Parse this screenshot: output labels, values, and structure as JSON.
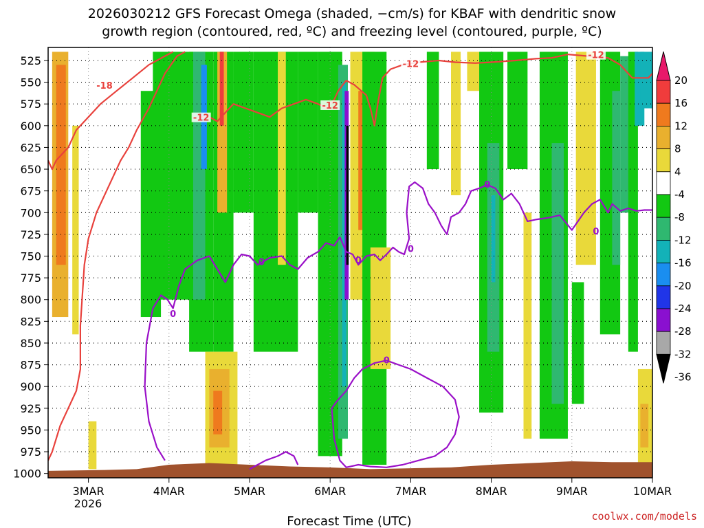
{
  "chart_data": {
    "type": "heatmap",
    "title_line1": "2026030212 GFS Forecast Omega (shaded, −cm/s) for KBAF with dendritic snow",
    "title_line2": "growth region (contoured, red, ºC) and freezing level (contoured, purple, ºC)",
    "xlabel": "Forecast Time (UTC)",
    "credit": "coolwx.com/models",
    "x_ticks": [
      "3MAR",
      "4MAR",
      "5MAR",
      "6MAR",
      "7MAR",
      "8MAR",
      "9MAR",
      "10MAR"
    ],
    "x_year_label": "2026",
    "x_range_days": [
      2.5,
      10.0
    ],
    "y_ticks": [
      525,
      550,
      575,
      600,
      625,
      650,
      675,
      700,
      725,
      750,
      775,
      800,
      825,
      850,
      875,
      900,
      925,
      950,
      975,
      1000
    ],
    "y_range_hpa": [
      510,
      1005
    ],
    "colorbar": {
      "levels": [
        20,
        16,
        12,
        8,
        4,
        -4,
        -8,
        -12,
        -16,
        -20,
        -24,
        -28,
        -32,
        -36
      ],
      "colors": [
        "#e8186a",
        "#f03c3c",
        "#ef7a1e",
        "#e9b02e",
        "#e9d93a",
        "#ffffff",
        "#12c812",
        "#2fb870",
        "#13b2b8",
        "#1a8ef0",
        "#2035e8",
        "#8a10d0",
        "#a8a8a8",
        "#000000"
      ]
    },
    "colors": {
      "snow_growth_contour": "#e8413c",
      "freezing_level_contour": "#9a10c8",
      "terrain": "#a0522d"
    },
    "contour_labels": {
      "red": [
        "-18",
        "-12",
        "-12",
        "-12",
        "-12"
      ],
      "purple": [
        "0",
        "0",
        "0",
        "0",
        "0",
        "0",
        "0"
      ]
    },
    "omega_bands": [
      {
        "x0": 2.55,
        "x1": 2.75,
        "p0": 515,
        "p1": 820,
        "v": 10
      },
      {
        "x0": 2.6,
        "x1": 2.72,
        "p0": 530,
        "p1": 760,
        "v": 14
      },
      {
        "x0": 2.8,
        "x1": 2.88,
        "p0": 600,
        "p1": 840,
        "v": 5
      },
      {
        "x0": 3.0,
        "x1": 3.1,
        "p0": 940,
        "p1": 995,
        "v": 5
      },
      {
        "x0": 3.65,
        "x1": 3.9,
        "p0": 560,
        "p1": 820,
        "v": -6
      },
      {
        "x0": 3.8,
        "x1": 4.3,
        "p0": 515,
        "p1": 800,
        "v": -6
      },
      {
        "x0": 4.15,
        "x1": 4.3,
        "p0": 520,
        "p1": 780,
        "v": -10
      },
      {
        "x0": 4.25,
        "x1": 4.55,
        "p0": 515,
        "p1": 860,
        "v": -6
      },
      {
        "x0": 4.3,
        "x1": 4.45,
        "p0": 515,
        "p1": 800,
        "v": -12
      },
      {
        "x0": 4.4,
        "x1": 4.47,
        "p0": 530,
        "p1": 650,
        "v": -22
      },
      {
        "x0": 4.55,
        "x1": 4.8,
        "p0": 515,
        "p1": 860,
        "v": -6
      },
      {
        "x0": 4.6,
        "x1": 4.72,
        "p0": 515,
        "p1": 700,
        "v": 10
      },
      {
        "x0": 4.63,
        "x1": 4.68,
        "p0": 515,
        "p1": 600,
        "v": 18
      },
      {
        "x0": 4.45,
        "x1": 4.85,
        "p0": 860,
        "p1": 990,
        "v": 5
      },
      {
        "x0": 4.5,
        "x1": 4.75,
        "p0": 880,
        "p1": 970,
        "v": 10
      },
      {
        "x0": 4.55,
        "x1": 4.66,
        "p0": 905,
        "p1": 955,
        "v": 14
      },
      {
        "x0": 4.8,
        "x1": 5.05,
        "p0": 515,
        "p1": 700,
        "v": -6
      },
      {
        "x0": 5.05,
        "x1": 5.6,
        "p0": 515,
        "p1": 860,
        "v": -6
      },
      {
        "x0": 5.35,
        "x1": 5.45,
        "p0": 515,
        "p1": 760,
        "v": 6
      },
      {
        "x0": 5.6,
        "x1": 5.85,
        "p0": 515,
        "p1": 700,
        "v": -6
      },
      {
        "x0": 5.85,
        "x1": 6.15,
        "p0": 515,
        "p1": 980,
        "v": -6
      },
      {
        "x0": 6.1,
        "x1": 6.22,
        "p0": 530,
        "p1": 960,
        "v": -12
      },
      {
        "x0": 6.15,
        "x1": 6.2,
        "p0": 550,
        "p1": 900,
        "v": -18
      },
      {
        "x0": 6.18,
        "x1": 6.23,
        "p0": 560,
        "p1": 800,
        "v": -30
      },
      {
        "x0": 6.2,
        "x1": 6.23,
        "p0": 600,
        "p1": 760,
        "v": -40
      },
      {
        "x0": 6.25,
        "x1": 6.55,
        "p0": 515,
        "p1": 800,
        "v": 6
      },
      {
        "x0": 6.35,
        "x1": 6.5,
        "p0": 560,
        "p1": 720,
        "v": 12
      },
      {
        "x0": 6.4,
        "x1": 6.7,
        "p0": 515,
        "p1": 990,
        "v": -6
      },
      {
        "x0": 6.5,
        "x1": 6.75,
        "p0": 740,
        "p1": 880,
        "v": 6
      },
      {
        "x0": 7.2,
        "x1": 7.35,
        "p0": 515,
        "p1": 650,
        "v": -6
      },
      {
        "x0": 7.5,
        "x1": 7.62,
        "p0": 515,
        "p1": 680,
        "v": 5
      },
      {
        "x0": 7.7,
        "x1": 7.85,
        "p0": 515,
        "p1": 560,
        "v": 5
      },
      {
        "x0": 7.85,
        "x1": 8.15,
        "p0": 515,
        "p1": 930,
        "v": -6
      },
      {
        "x0": 7.95,
        "x1": 8.1,
        "p0": 620,
        "p1": 860,
        "v": -12
      },
      {
        "x0": 8.0,
        "x1": 8.05,
        "p0": 680,
        "p1": 780,
        "v": -16
      },
      {
        "x0": 8.2,
        "x1": 8.45,
        "p0": 515,
        "p1": 650,
        "v": -6
      },
      {
        "x0": 8.4,
        "x1": 8.5,
        "p0": 700,
        "p1": 960,
        "v": 5
      },
      {
        "x0": 8.6,
        "x1": 8.95,
        "p0": 515,
        "p1": 960,
        "v": -6
      },
      {
        "x0": 8.75,
        "x1": 8.9,
        "p0": 620,
        "p1": 920,
        "v": -12
      },
      {
        "x0": 9.05,
        "x1": 9.3,
        "p0": 515,
        "p1": 760,
        "v": 5
      },
      {
        "x0": 9.0,
        "x1": 9.15,
        "p0": 780,
        "p1": 920,
        "v": -6
      },
      {
        "x0": 9.35,
        "x1": 9.6,
        "p0": 515,
        "p1": 840,
        "v": -6
      },
      {
        "x0": 9.5,
        "x1": 9.6,
        "p0": 560,
        "p1": 760,
        "v": -12
      },
      {
        "x0": 9.6,
        "x1": 9.72,
        "p0": 520,
        "p1": 700,
        "v": -12
      },
      {
        "x0": 9.7,
        "x1": 9.82,
        "p0": 515,
        "p1": 860,
        "v": -8
      },
      {
        "x0": 9.78,
        "x1": 9.9,
        "p0": 515,
        "p1": 600,
        "v": -16
      },
      {
        "x0": 9.85,
        "x1": 10.0,
        "p0": 515,
        "p1": 580,
        "v": -18
      },
      {
        "x0": 9.82,
        "x1": 10.0,
        "p0": 880,
        "p1": 990,
        "v": 5
      },
      {
        "x0": 9.85,
        "x1": 9.95,
        "p0": 920,
        "p1": 970,
        "v": 10
      }
    ],
    "snow_growth_contours": [
      {
        "points": [
          [
            2.5,
            640
          ],
          [
            2.55,
            650
          ],
          [
            2.6,
            640
          ],
          [
            2.75,
            625
          ],
          [
            2.85,
            605
          ],
          [
            3.0,
            590
          ],
          [
            3.15,
            575
          ],
          [
            3.35,
            560
          ],
          [
            3.55,
            545
          ],
          [
            3.75,
            530
          ],
          [
            3.95,
            520
          ],
          [
            4.05,
            515
          ]
        ]
      },
      {
        "points": [
          [
            2.5,
            985
          ],
          [
            2.55,
            975
          ],
          [
            2.65,
            945
          ],
          [
            2.75,
            925
          ],
          [
            2.85,
            905
          ],
          [
            2.9,
            880
          ],
          [
            2.9,
            830
          ],
          [
            2.95,
            760
          ],
          [
            3.0,
            730
          ],
          [
            3.1,
            700
          ],
          [
            3.25,
            670
          ],
          [
            3.4,
            640
          ],
          [
            3.5,
            625
          ],
          [
            3.6,
            605
          ],
          [
            3.75,
            580
          ],
          [
            3.85,
            560
          ],
          [
            3.95,
            540
          ],
          [
            4.1,
            520
          ],
          [
            4.2,
            515
          ]
        ]
      },
      {
        "points": [
          [
            4.35,
            590
          ],
          [
            4.5,
            590
          ],
          [
            4.6,
            595
          ],
          [
            4.7,
            585
          ],
          [
            4.8,
            575
          ],
          [
            4.95,
            580
          ],
          [
            5.1,
            585
          ],
          [
            5.25,
            590
          ],
          [
            5.4,
            580
          ],
          [
            5.55,
            575
          ],
          [
            5.7,
            570
          ],
          [
            5.85,
            575
          ],
          [
            5.95,
            580
          ],
          [
            6.05,
            570
          ],
          [
            6.1,
            560
          ],
          [
            6.2,
            548
          ]
        ]
      },
      {
        "points": [
          [
            6.2,
            548
          ],
          [
            6.3,
            553
          ],
          [
            6.45,
            565
          ],
          [
            6.5,
            580
          ],
          [
            6.55,
            600
          ],
          [
            6.6,
            570
          ],
          [
            6.65,
            545
          ],
          [
            6.75,
            535
          ],
          [
            6.9,
            530
          ],
          [
            7.1,
            527
          ],
          [
            7.35,
            525
          ],
          [
            7.55,
            527
          ],
          [
            7.8,
            528
          ],
          [
            8.0,
            527
          ],
          [
            8.3,
            525
          ],
          [
            8.55,
            523
          ],
          [
            8.75,
            522
          ],
          [
            8.95,
            518
          ],
          [
            9.2,
            520
          ],
          [
            9.45,
            522
          ],
          [
            9.6,
            530
          ],
          [
            9.75,
            545
          ],
          [
            9.95,
            545
          ],
          [
            10.0,
            540
          ]
        ]
      }
    ],
    "freezing_contours": [
      {
        "points": [
          [
            3.95,
            985
          ],
          [
            3.85,
            970
          ],
          [
            3.75,
            940
          ],
          [
            3.7,
            900
          ],
          [
            3.72,
            850
          ],
          [
            3.8,
            810
          ],
          [
            3.9,
            795
          ],
          [
            3.98,
            800
          ],
          [
            4.05,
            810
          ],
          [
            4.12,
            785
          ],
          [
            4.2,
            765
          ],
          [
            4.35,
            755
          ],
          [
            4.5,
            750
          ],
          [
            4.6,
            765
          ],
          [
            4.7,
            780
          ],
          [
            4.8,
            760
          ],
          [
            4.9,
            748
          ],
          [
            5.0,
            750
          ],
          [
            5.1,
            760
          ],
          [
            5.25,
            752
          ],
          [
            5.4,
            750
          ],
          [
            5.5,
            760
          ],
          [
            5.6,
            765
          ],
          [
            5.72,
            752
          ],
          [
            5.85,
            745
          ],
          [
            5.95,
            735
          ],
          [
            6.05,
            738
          ],
          [
            6.12,
            728
          ]
        ]
      },
      {
        "points": [
          [
            6.12,
            728
          ],
          [
            6.2,
            745
          ],
          [
            6.28,
            748
          ],
          [
            6.35,
            760
          ],
          [
            6.45,
            750
          ],
          [
            6.55,
            748
          ],
          [
            6.62,
            755
          ],
          [
            6.7,
            748
          ],
          [
            6.78,
            740
          ],
          [
            6.85,
            745
          ],
          [
            6.92,
            748
          ],
          [
            6.98,
            730
          ],
          [
            6.95,
            700
          ],
          [
            6.98,
            670
          ],
          [
            7.05,
            665
          ],
          [
            7.15,
            672
          ],
          [
            7.22,
            690
          ],
          [
            7.3,
            700
          ],
          [
            7.38,
            715
          ],
          [
            7.45,
            725
          ],
          [
            7.5,
            705
          ],
          [
            7.6,
            700
          ],
          [
            7.68,
            690
          ],
          [
            7.75,
            675
          ],
          [
            7.85,
            672
          ],
          [
            7.95,
            668
          ],
          [
            8.05,
            672
          ],
          [
            8.15,
            685
          ],
          [
            8.25,
            678
          ],
          [
            8.35,
            690
          ],
          [
            8.45,
            710
          ],
          [
            8.55,
            708
          ],
          [
            8.7,
            706
          ],
          [
            8.85,
            703
          ],
          [
            9.0,
            720
          ],
          [
            9.15,
            700
          ],
          [
            9.25,
            690
          ],
          [
            9.35,
            685
          ],
          [
            9.45,
            700
          ],
          [
            9.5,
            690
          ],
          [
            9.6,
            698
          ],
          [
            9.7,
            695
          ],
          [
            9.8,
            698
          ],
          [
            9.9,
            697
          ],
          [
            10.0,
            697
          ]
        ]
      },
      {
        "points": [
          [
            5.0,
            995
          ],
          [
            5.1,
            990
          ],
          [
            5.2,
            985
          ],
          [
            5.35,
            980
          ],
          [
            5.45,
            975
          ],
          [
            5.55,
            980
          ],
          [
            5.6,
            990
          ]
        ]
      },
      {
        "points": [
          [
            6.02,
            925
          ],
          [
            6.05,
            960
          ],
          [
            6.12,
            985
          ],
          [
            6.2,
            993
          ],
          [
            6.35,
            990
          ],
          [
            6.5,
            992
          ],
          [
            6.7,
            993
          ],
          [
            6.9,
            990
          ],
          [
            7.1,
            985
          ],
          [
            7.3,
            980
          ],
          [
            7.45,
            970
          ],
          [
            7.55,
            955
          ],
          [
            7.6,
            935
          ],
          [
            7.55,
            915
          ],
          [
            7.4,
            900
          ],
          [
            7.2,
            890
          ],
          [
            7.0,
            880
          ],
          [
            6.85,
            875
          ],
          [
            6.7,
            870
          ],
          [
            6.55,
            873
          ],
          [
            6.4,
            880
          ],
          [
            6.3,
            890
          ],
          [
            6.2,
            905
          ],
          [
            6.1,
            915
          ],
          [
            6.02,
            925
          ]
        ]
      }
    ],
    "terrain": [
      [
        2.5,
        997
      ],
      [
        3.2,
        996
      ],
      [
        3.6,
        995
      ],
      [
        4.0,
        990
      ],
      [
        4.5,
        988
      ],
      [
        5.0,
        990
      ],
      [
        5.5,
        992
      ],
      [
        6.0,
        993
      ],
      [
        6.5,
        995
      ],
      [
        7.0,
        994
      ],
      [
        7.5,
        993
      ],
      [
        8.0,
        990
      ],
      [
        8.5,
        988
      ],
      [
        9.0,
        986
      ],
      [
        9.5,
        987
      ],
      [
        10.0,
        987
      ]
    ]
  }
}
